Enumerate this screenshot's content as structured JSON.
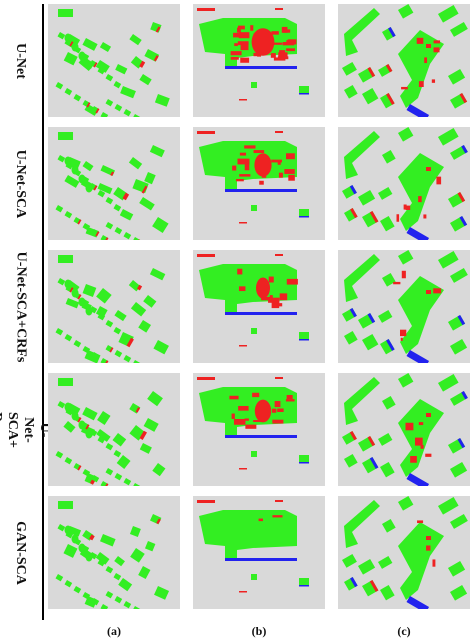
{
  "figure": {
    "row_labels": [
      "U-Net",
      "U-Net-SCA",
      "U-Net-SCA+CRFs",
      "U-Net-SCA+ Reuse",
      "GAN-SCA"
    ],
    "column_labels": [
      "(a)",
      "(b)",
      "(c)"
    ]
  },
  "colors": {
    "background": "#d9d9d9",
    "true_positive": "#33ee22",
    "false_positive": "#ee2222",
    "false_negative": "#2222ee"
  },
  "panel_error_level": [
    [
      0.3,
      0.8,
      0.5
    ],
    [
      0.25,
      0.45,
      0.4
    ],
    [
      0.2,
      0.25,
      0.35
    ],
    [
      0.2,
      0.4,
      0.45
    ],
    [
      0.1,
      0.05,
      0.2
    ]
  ]
}
